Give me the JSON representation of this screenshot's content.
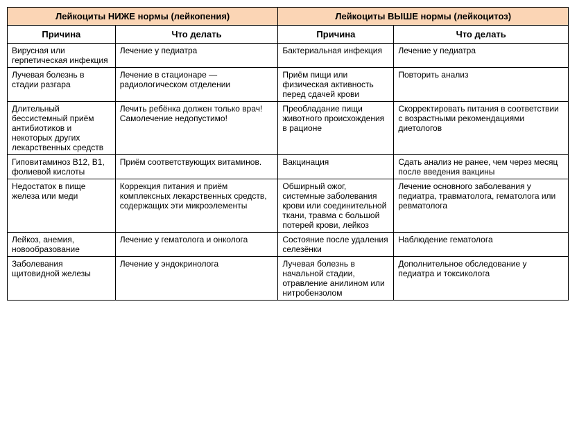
{
  "table": {
    "header_left": "Лейкоциты НИЖЕ нормы (лейкопения)",
    "header_right": "Лейкоциты ВЫШЕ нормы (лейкоцитоз)",
    "sub_headers": {
      "cause_left": "Причина",
      "action_left": "Что делать",
      "cause_right": "Причина",
      "action_right": "Что делать"
    },
    "rows": [
      {
        "cause_left": "Вирусная или герпетическая инфекция",
        "action_left": "Лечение у педиатра",
        "cause_right": "Бактериальная инфекция",
        "action_right": "Лечение у педиатра"
      },
      {
        "cause_left": "Лучевая болезнь в стадии разгара",
        "action_left": "Лечение в стационаре — радиологическом отделении",
        "cause_right": "Приём пищи или физическая активность перед сдачей крови",
        "action_right": "Повторить анализ"
      },
      {
        "cause_left": "Длительный бессистемный приём антибиотиков и некоторых других лекарственных средств",
        "action_left": "Лечить ребёнка должен только врач! Самолечение недопустимо!",
        "cause_right": "Преобладание пищи животного происхождения в рационе",
        "action_right": "Скорректировать питания в соответствии с возрастными рекомендациями диетологов"
      },
      {
        "cause_left": "Гиповитаминоз В12, В1, фолиевой кислоты",
        "action_left": "Приём соответствующих витаминов.",
        "cause_right": "Вакцинация",
        "action_right": "Сдать анализ не ранее, чем через месяц после введения вакцины"
      },
      {
        "cause_left": "Недостаток в пище железа или меди",
        "action_left": "Коррекция питания и приём комплексных лекарственных средств, содержащих эти микроэлементы",
        "cause_right": "Обширный ожог, системные заболевания крови или соединительной ткани, травма с большой потерей крови, лейкоз",
        "action_right": "Лечение основного заболевания у педиатра, травматолога, гематолога или ревматолога"
      },
      {
        "cause_left": "Лейкоз, анемия, новообразование",
        "action_left": "Лечение у гематолога и онколога",
        "cause_right": "Состояние после удаления селезёнки",
        "action_right": "Наблюдение гематолога"
      },
      {
        "cause_left": "Заболевания щитовидной железы",
        "action_left": "Лечение у эндокринолога",
        "cause_right": "Лучевая болезнь в начальной стадии, отравление анилином или нитробензолом",
        "action_right": "Дополнительное обследование у педиатра и токсиколога"
      }
    ],
    "colors": {
      "header_bg": "#fbd5b5",
      "border": "#000000",
      "text": "#000000",
      "background": "#ffffff"
    },
    "fonts": {
      "body_size": 12,
      "header_size": 13,
      "family": "Arial"
    }
  }
}
